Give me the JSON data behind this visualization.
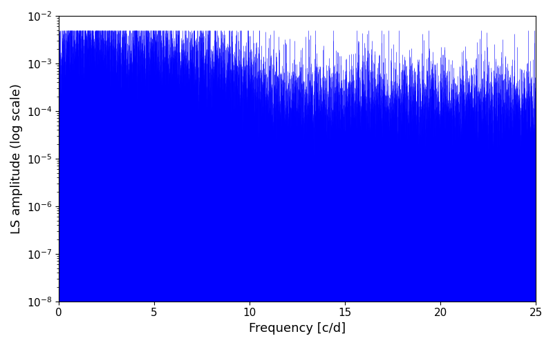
{
  "xlabel": "Frequency [c/d]",
  "ylabel": "LS amplitude (log scale)",
  "xlim": [
    0,
    25
  ],
  "ylim": [
    1e-08,
    0.01
  ],
  "line_color": "#0000ff",
  "background_color": "#ffffff",
  "freq_max": 25.0,
  "n_points": 8000,
  "seed": 12345,
  "xlabel_fontsize": 13,
  "ylabel_fontsize": 13,
  "tick_fontsize": 11
}
